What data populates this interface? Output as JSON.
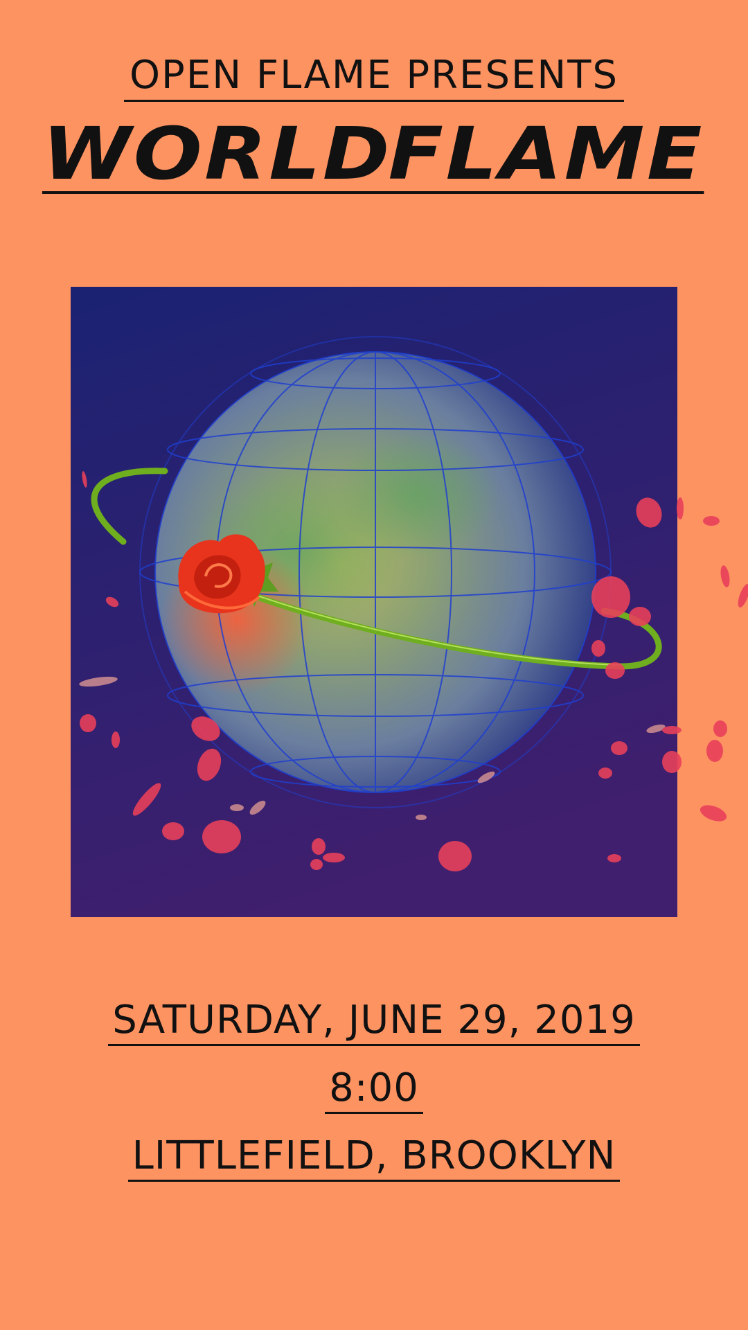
{
  "poster": {
    "presenter": "OPEN FLAME PRESENTS",
    "title_word_1": "WORLD",
    "title_word_2": "FLAME",
    "date": "SATURDAY, JUNE 29, 2019",
    "time": "8:00",
    "venue": "LITTLEFIELD, BROOKLYN"
  },
  "colors": {
    "background": "#fe9362",
    "artwork_top": "#1b2272",
    "artwork_bottom": "#3f1f6e",
    "globe_wire": "#1f3fd0",
    "rose": "#e8341c",
    "stem": "#6fae1e",
    "petal": "#e8405a"
  },
  "icons": [
    "globe-icon",
    "rose-icon"
  ]
}
